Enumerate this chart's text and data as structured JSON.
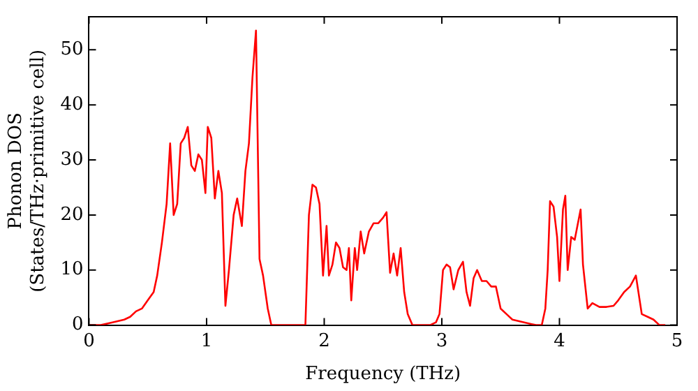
{
  "chart_data": {
    "type": "line",
    "xlabel": "Frequency (THz)",
    "ylabel": "Phonon DOS\n(States/THz·primitive cell)",
    "xlim": [
      0,
      5
    ],
    "ylim": [
      0,
      56
    ],
    "xticks": [
      0,
      1,
      2,
      3,
      4,
      5
    ],
    "yticks": [
      0,
      10,
      20,
      30,
      40,
      50
    ],
    "grid": false,
    "legend": false,
    "marker": "none",
    "line_style": "solid",
    "series": [
      {
        "color": "#ff0000",
        "x": [
          0,
          0.1,
          0.2,
          0.3,
          0.35,
          0.4,
          0.45,
          0.5,
          0.55,
          0.58,
          0.62,
          0.66,
          0.69,
          0.72,
          0.75,
          0.78,
          0.81,
          0.84,
          0.87,
          0.9,
          0.93,
          0.96,
          0.99,
          1.01,
          1.04,
          1.07,
          1.1,
          1.13,
          1.16,
          1.19,
          1.23,
          1.26,
          1.3,
          1.33,
          1.36,
          1.39,
          1.42,
          1.45,
          1.48,
          1.52,
          1.55,
          1.7,
          1.84,
          1.87,
          1.9,
          1.93,
          1.96,
          1.99,
          2.02,
          2.04,
          2.07,
          2.1,
          2.13,
          2.16,
          2.19,
          2.21,
          2.23,
          2.26,
          2.28,
          2.31,
          2.34,
          2.38,
          2.42,
          2.46,
          2.5,
          2.53,
          2.56,
          2.59,
          2.62,
          2.65,
          2.68,
          2.71,
          2.75,
          2.9,
          2.95,
          2.98,
          3.01,
          3.04,
          3.07,
          3.1,
          3.14,
          3.18,
          3.21,
          3.24,
          3.27,
          3.3,
          3.34,
          3.38,
          3.42,
          3.46,
          3.5,
          3.55,
          3.6,
          3.7,
          3.8,
          3.85,
          3.88,
          3.9,
          3.92,
          3.95,
          3.98,
          4.0,
          4.03,
          4.05,
          4.07,
          4.1,
          4.13,
          4.18,
          4.2,
          4.24,
          4.28,
          4.34,
          4.4,
          4.46,
          4.5,
          4.55,
          4.6,
          4.65,
          4.7,
          4.75,
          4.8,
          4.85,
          4.9
        ],
        "values": [
          0,
          0,
          0.5,
          1,
          1.5,
          2.5,
          3,
          4.5,
          6,
          9,
          15,
          22,
          33,
          20,
          22,
          33,
          34,
          36,
          29,
          28,
          31,
          30,
          24,
          36,
          34,
          23,
          28,
          24,
          3.5,
          10,
          20,
          23,
          18,
          28,
          33,
          45,
          53.5,
          12,
          9,
          3,
          0,
          0,
          0,
          20,
          25.5,
          25,
          22,
          9,
          18,
          9,
          11,
          15,
          14,
          10.5,
          10,
          14,
          4.5,
          14,
          10,
          17,
          13,
          17,
          18.5,
          18.5,
          19.5,
          20.5,
          9.5,
          13,
          9,
          14,
          6,
          2,
          0,
          0,
          0.5,
          2,
          10,
          11,
          10.5,
          6.5,
          10,
          11.5,
          6,
          3.5,
          8.5,
          10,
          8,
          8,
          7,
          7,
          3,
          2,
          1,
          0.5,
          0,
          0,
          3,
          10,
          22.5,
          21.5,
          16,
          8,
          21,
          23.5,
          10,
          16,
          15.5,
          21,
          11,
          3,
          4,
          3.3,
          3.3,
          3.5,
          4.5,
          6,
          7,
          9,
          2,
          1.5,
          1,
          0,
          0
        ]
      }
    ]
  }
}
